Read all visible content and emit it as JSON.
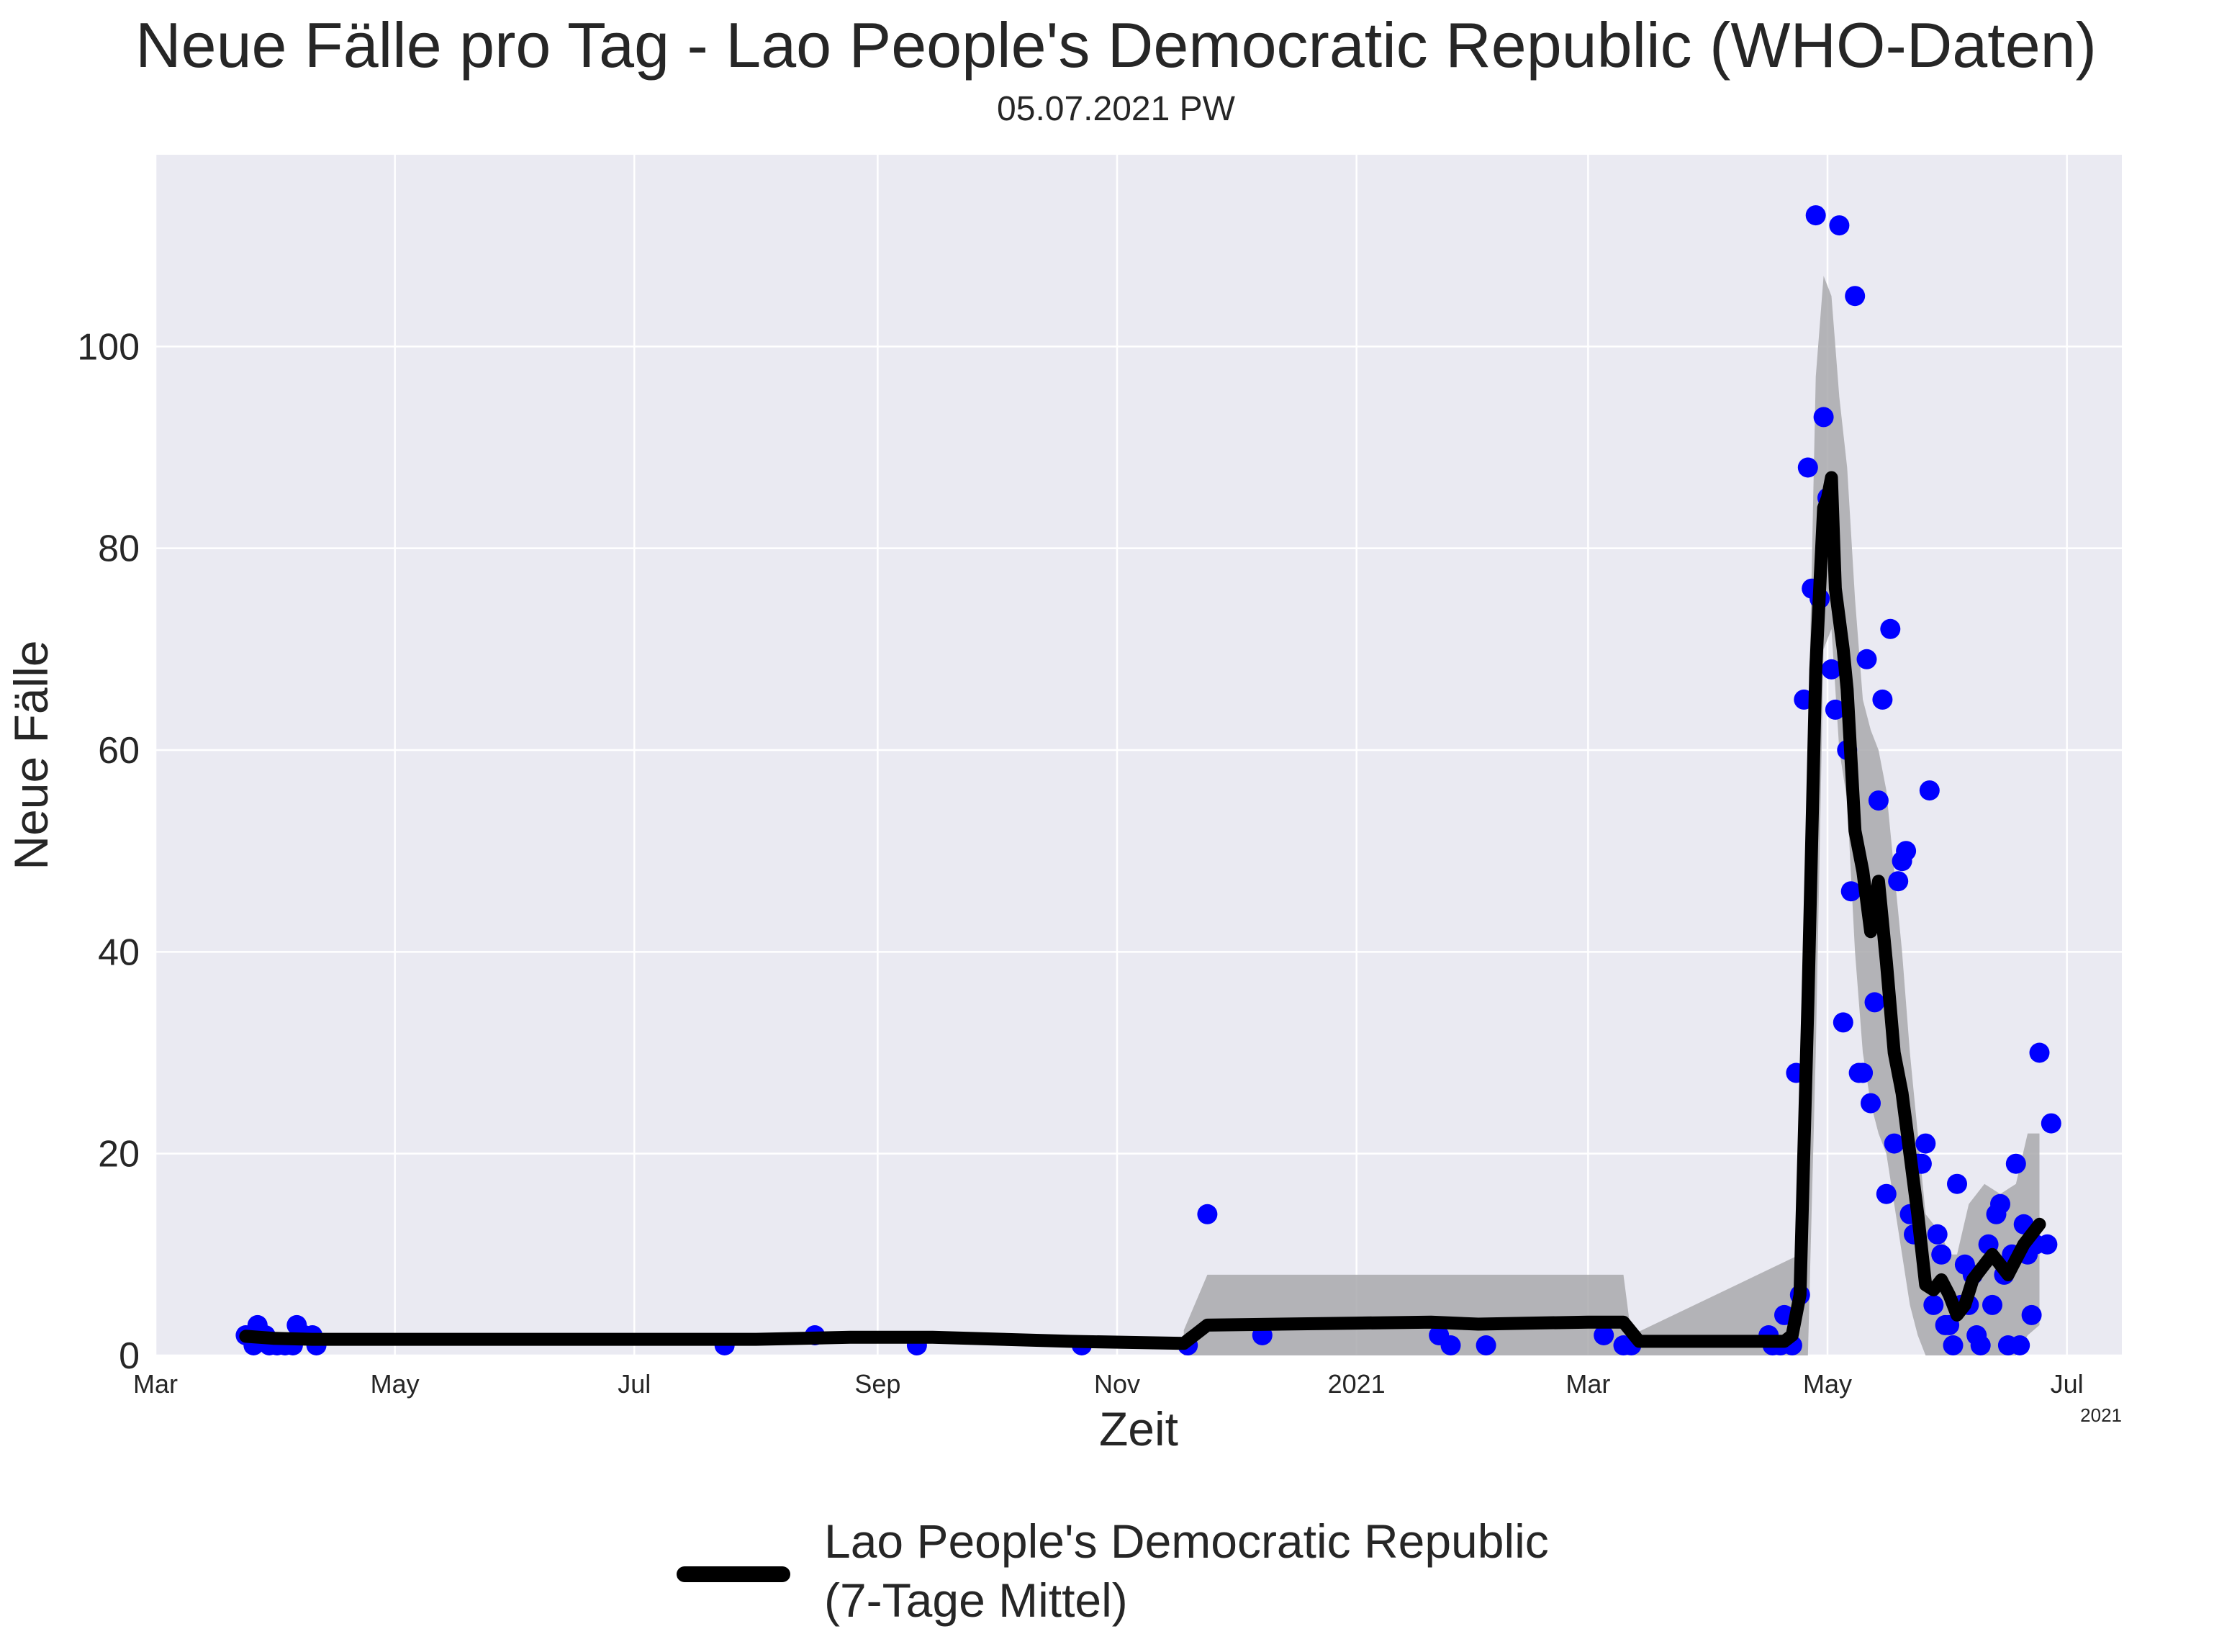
{
  "title": "Neue Fälle pro Tag - Lao People's Democratic Republic (WHO-Daten)",
  "subtitle": "05.07.2021 PW",
  "chart_data": {
    "type": "line",
    "xlabel": "Zeit",
    "ylabel": "Neue Fälle",
    "x_start": "2020-03-01",
    "x_end": "2021-07-15",
    "ylim": [
      0,
      119
    ],
    "yticks": [
      0,
      20,
      40,
      60,
      80,
      100
    ],
    "xticks": [
      {
        "date": "2020-03-01",
        "label": "Mar"
      },
      {
        "date": "2020-05-01",
        "label": "May"
      },
      {
        "date": "2020-07-01",
        "label": "Jul"
      },
      {
        "date": "2020-09-01",
        "label": "Sep"
      },
      {
        "date": "2020-11-01",
        "label": "Nov"
      },
      {
        "date": "2021-01-01",
        "label": "2021"
      },
      {
        "date": "2021-03-01",
        "label": "Mar"
      },
      {
        "date": "2021-05-01",
        "label": "May"
      },
      {
        "date": "2021-07-01",
        "label": "Jul"
      }
    ],
    "x_offset_label": "2021",
    "grid": true,
    "background": "#eaeaf2",
    "legend_position": "below",
    "series": [
      {
        "name": "Lao People's Democratic Republic\n(7-Tage Mittel)",
        "kind": "line",
        "color": "#000000",
        "points": [
          [
            "2020-03-24",
            1.9
          ],
          [
            "2020-03-31",
            1.7
          ],
          [
            "2020-04-10",
            1.6
          ],
          [
            "2020-06-01",
            1.6
          ],
          [
            "2020-08-01",
            1.6
          ],
          [
            "2020-08-25",
            1.8
          ],
          [
            "2020-09-15",
            1.8
          ],
          [
            "2020-10-20",
            1.4
          ],
          [
            "2020-11-18",
            1.2
          ],
          [
            "2020-11-24",
            3.0
          ],
          [
            "2021-01-01",
            3.2
          ],
          [
            "2021-01-20",
            3.3
          ],
          [
            "2021-02-01",
            3.1
          ],
          [
            "2021-03-01",
            3.3
          ],
          [
            "2021-03-10",
            3.3
          ],
          [
            "2021-03-14",
            1.4
          ],
          [
            "2021-04-15",
            1.4
          ],
          [
            "2021-04-20",
            1.4
          ],
          [
            "2021-04-22",
            2.0
          ],
          [
            "2021-04-24",
            6.0
          ],
          [
            "2021-04-26",
            35.0
          ],
          [
            "2021-04-28",
            68.0
          ],
          [
            "2021-04-30",
            84.0
          ],
          [
            "2021-05-01",
            85.0
          ],
          [
            "2021-05-02",
            87.0
          ],
          [
            "2021-05-03",
            76.0
          ],
          [
            "2021-05-05",
            70.0
          ],
          [
            "2021-05-06",
            66.0
          ],
          [
            "2021-05-08",
            52.0
          ],
          [
            "2021-05-10",
            48.0
          ],
          [
            "2021-05-12",
            42.0
          ],
          [
            "2021-05-14",
            47.0
          ],
          [
            "2021-05-16",
            39.0
          ],
          [
            "2021-05-18",
            30.0
          ],
          [
            "2021-05-20",
            26.0
          ],
          [
            "2021-05-22",
            20.0
          ],
          [
            "2021-05-24",
            14.0
          ],
          [
            "2021-05-26",
            7.0
          ],
          [
            "2021-05-28",
            6.5
          ],
          [
            "2021-05-30",
            7.5
          ],
          [
            "2021-06-01",
            6.0
          ],
          [
            "2021-06-03",
            4.0
          ],
          [
            "2021-06-05",
            5.0
          ],
          [
            "2021-06-07",
            7.5
          ],
          [
            "2021-06-10",
            9.0
          ],
          [
            "2021-06-12",
            10.0
          ],
          [
            "2021-06-14",
            9.0
          ],
          [
            "2021-06-16",
            8.0
          ],
          [
            "2021-06-18",
            9.5
          ],
          [
            "2021-06-20",
            11.0
          ],
          [
            "2021-06-22",
            12.0
          ],
          [
            "2021-06-24",
            13.0
          ]
        ]
      },
      {
        "name": "",
        "kind": "band",
        "color": "#a9a9ad",
        "points": [
          [
            "2020-11-18",
            0,
            2.5
          ],
          [
            "2020-11-24",
            0,
            8.0
          ],
          [
            "2021-01-20",
            0,
            8.0
          ],
          [
            "2021-03-10",
            0,
            8.0
          ],
          [
            "2021-03-12",
            0,
            2.0
          ],
          [
            "2021-04-24",
            0,
            10.0
          ],
          [
            "2021-04-26",
            0,
            60.0
          ],
          [
            "2021-04-28",
            30.0,
            97.0
          ],
          [
            "2021-04-30",
            70.0,
            107.0
          ],
          [
            "2021-05-02",
            72.0,
            105.0
          ],
          [
            "2021-05-04",
            60.0,
            95.0
          ],
          [
            "2021-05-06",
            55.0,
            88.0
          ],
          [
            "2021-05-08",
            40.0,
            75.0
          ],
          [
            "2021-05-10",
            30.0,
            65.0
          ],
          [
            "2021-05-12",
            25.0,
            62.0
          ],
          [
            "2021-05-14",
            22.0,
            60.0
          ],
          [
            "2021-05-16",
            20.0,
            56.0
          ],
          [
            "2021-05-18",
            15.0,
            48.0
          ],
          [
            "2021-05-20",
            10.0,
            40.0
          ],
          [
            "2021-05-22",
            5.0,
            30.0
          ],
          [
            "2021-05-24",
            2.0,
            22.0
          ],
          [
            "2021-05-26",
            0,
            14.0
          ],
          [
            "2021-05-28",
            0,
            13.0
          ],
          [
            "2021-05-30",
            0,
            12.0
          ],
          [
            "2021-06-01",
            0,
            10.0
          ],
          [
            "2021-06-03",
            0,
            10.0
          ],
          [
            "2021-06-06",
            0,
            15.0
          ],
          [
            "2021-06-10",
            0,
            17.0
          ],
          [
            "2021-06-14",
            0,
            16.0
          ],
          [
            "2021-06-18",
            0,
            17.0
          ],
          [
            "2021-06-21",
            2.0,
            22.0
          ],
          [
            "2021-06-24",
            3.0,
            22.0
          ]
        ]
      },
      {
        "name": "",
        "kind": "scatter",
        "color": "#0000ff",
        "points": [
          [
            "2020-03-24",
            2
          ],
          [
            "2020-03-26",
            1
          ],
          [
            "2020-03-27",
            3
          ],
          [
            "2020-03-29",
            2
          ],
          [
            "2020-03-30",
            1
          ],
          [
            "2020-04-01",
            1
          ],
          [
            "2020-04-03",
            1
          ],
          [
            "2020-04-05",
            1
          ],
          [
            "2020-04-06",
            3
          ],
          [
            "2020-04-08",
            2
          ],
          [
            "2020-04-10",
            2
          ],
          [
            "2020-04-11",
            1
          ],
          [
            "2020-07-24",
            1
          ],
          [
            "2020-08-16",
            2
          ],
          [
            "2020-09-11",
            1
          ],
          [
            "2020-10-23",
            1
          ],
          [
            "2020-11-19",
            1
          ],
          [
            "2020-11-24",
            14
          ],
          [
            "2020-12-08",
            2
          ],
          [
            "2021-01-22",
            2
          ],
          [
            "2021-01-25",
            1
          ],
          [
            "2021-02-03",
            1
          ],
          [
            "2021-03-05",
            2
          ],
          [
            "2021-03-10",
            1
          ],
          [
            "2021-03-12",
            1
          ],
          [
            "2021-04-16",
            2
          ],
          [
            "2021-04-17",
            1
          ],
          [
            "2021-04-19",
            1
          ],
          [
            "2021-04-20",
            4
          ],
          [
            "2021-04-22",
            1
          ],
          [
            "2021-04-23",
            28
          ],
          [
            "2021-04-24",
            6
          ],
          [
            "2021-04-25",
            65
          ],
          [
            "2021-04-26",
            88
          ],
          [
            "2021-04-27",
            76
          ],
          [
            "2021-04-28",
            113
          ],
          [
            "2021-04-29",
            75
          ],
          [
            "2021-04-30",
            93
          ],
          [
            "2021-05-01",
            85
          ],
          [
            "2021-05-02",
            68
          ],
          [
            "2021-05-03",
            64
          ],
          [
            "2021-05-04",
            112
          ],
          [
            "2021-05-05",
            33
          ],
          [
            "2021-05-06",
            60
          ],
          [
            "2021-05-07",
            46
          ],
          [
            "2021-05-08",
            105
          ],
          [
            "2021-05-09",
            28
          ],
          [
            "2021-05-10",
            28
          ],
          [
            "2021-05-11",
            69
          ],
          [
            "2021-05-12",
            25
          ],
          [
            "2021-05-13",
            35
          ],
          [
            "2021-05-14",
            55
          ],
          [
            "2021-05-15",
            65
          ],
          [
            "2021-05-16",
            16
          ],
          [
            "2021-05-17",
            72
          ],
          [
            "2021-05-18",
            21
          ],
          [
            "2021-05-19",
            47
          ],
          [
            "2021-05-20",
            49
          ],
          [
            "2021-05-21",
            50
          ],
          [
            "2021-05-22",
            14
          ],
          [
            "2021-05-23",
            12
          ],
          [
            "2021-05-24",
            19
          ],
          [
            "2021-05-25",
            19
          ],
          [
            "2021-05-26",
            21
          ],
          [
            "2021-05-27",
            56
          ],
          [
            "2021-05-28",
            5
          ],
          [
            "2021-05-29",
            12
          ],
          [
            "2021-05-30",
            10
          ],
          [
            "2021-05-31",
            3
          ],
          [
            "2021-06-01",
            3
          ],
          [
            "2021-06-02",
            1
          ],
          [
            "2021-06-03",
            17
          ],
          [
            "2021-06-04",
            5
          ],
          [
            "2021-06-05",
            9
          ],
          [
            "2021-06-06",
            5
          ],
          [
            "2021-06-07",
            8
          ],
          [
            "2021-06-08",
            2
          ],
          [
            "2021-06-09",
            1
          ],
          [
            "2021-06-11",
            11
          ],
          [
            "2021-06-12",
            5
          ],
          [
            "2021-06-13",
            14
          ],
          [
            "2021-06-14",
            15
          ],
          [
            "2021-06-15",
            8
          ],
          [
            "2021-06-16",
            1
          ],
          [
            "2021-06-17",
            10
          ],
          [
            "2021-06-18",
            19
          ],
          [
            "2021-06-19",
            1
          ],
          [
            "2021-06-20",
            13
          ],
          [
            "2021-06-21",
            10
          ],
          [
            "2021-06-22",
            4
          ],
          [
            "2021-06-23",
            11
          ],
          [
            "2021-06-24",
            30
          ],
          [
            "2021-06-26",
            11
          ],
          [
            "2021-06-27",
            23
          ]
        ]
      }
    ]
  }
}
